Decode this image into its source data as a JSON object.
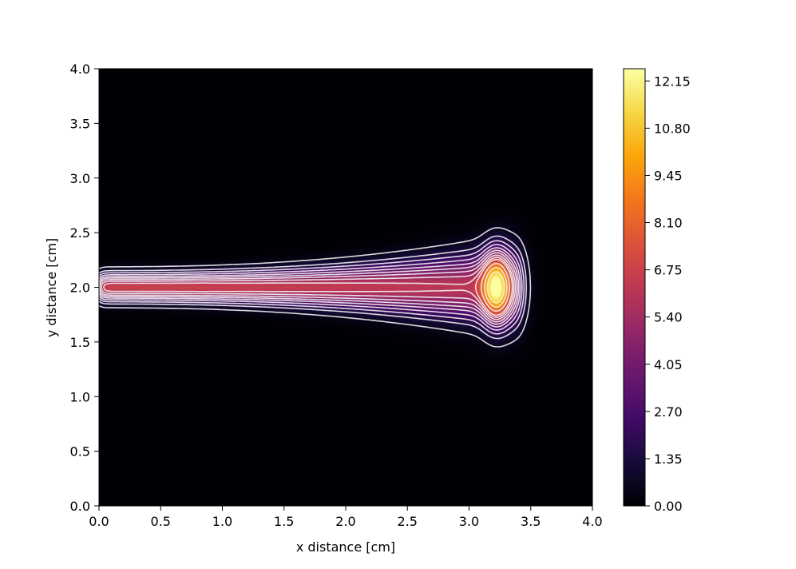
{
  "chart_data": {
    "type": "heatmap",
    "title": "",
    "xlabel": "x distance [cm]",
    "ylabel": "y distance [cm]",
    "xlim": [
      0.0,
      4.0
    ],
    "ylim": [
      0.0,
      4.0
    ],
    "x_ticks": [
      "0.0",
      "0.5",
      "1.0",
      "1.5",
      "2.0",
      "2.5",
      "3.0",
      "3.5",
      "4.0"
    ],
    "y_ticks": [
      "0.0",
      "0.5",
      "1.0",
      "1.5",
      "2.0",
      "2.5",
      "3.0",
      "3.5",
      "4.0"
    ],
    "x_tick_values": [
      0.0,
      0.5,
      1.0,
      1.5,
      2.0,
      2.5,
      3.0,
      3.5,
      4.0
    ],
    "y_tick_values": [
      0.0,
      0.5,
      1.0,
      1.5,
      2.0,
      2.5,
      3.0,
      3.5,
      4.0
    ],
    "colormap": "inferno",
    "colorbar": {
      "min": 0.0,
      "max": 12.5,
      "ticks": [
        "0.00",
        "1.35",
        "2.70",
        "4.05",
        "5.40",
        "6.75",
        "8.10",
        "9.45",
        "10.80",
        "12.15"
      ],
      "tick_values": [
        0.0,
        1.35,
        2.7,
        4.05,
        5.4,
        6.75,
        8.1,
        9.45,
        10.8,
        12.15
      ]
    },
    "contour_levels": [
      0.6,
      1.35,
      2.0,
      2.7,
      3.4,
      4.05,
      4.7,
      5.4,
      6.1,
      6.75,
      8.1,
      9.45,
      10.8
    ],
    "contour_color": "#f2f2f2",
    "features": {
      "jet_axis_y": 2.0,
      "jet_start_x": 0.0,
      "jet_end_x": 3.4,
      "peak_x": 3.22,
      "peak_y": 2.0,
      "peak_value": 12.5,
      "plume_value": 6.7
    }
  }
}
